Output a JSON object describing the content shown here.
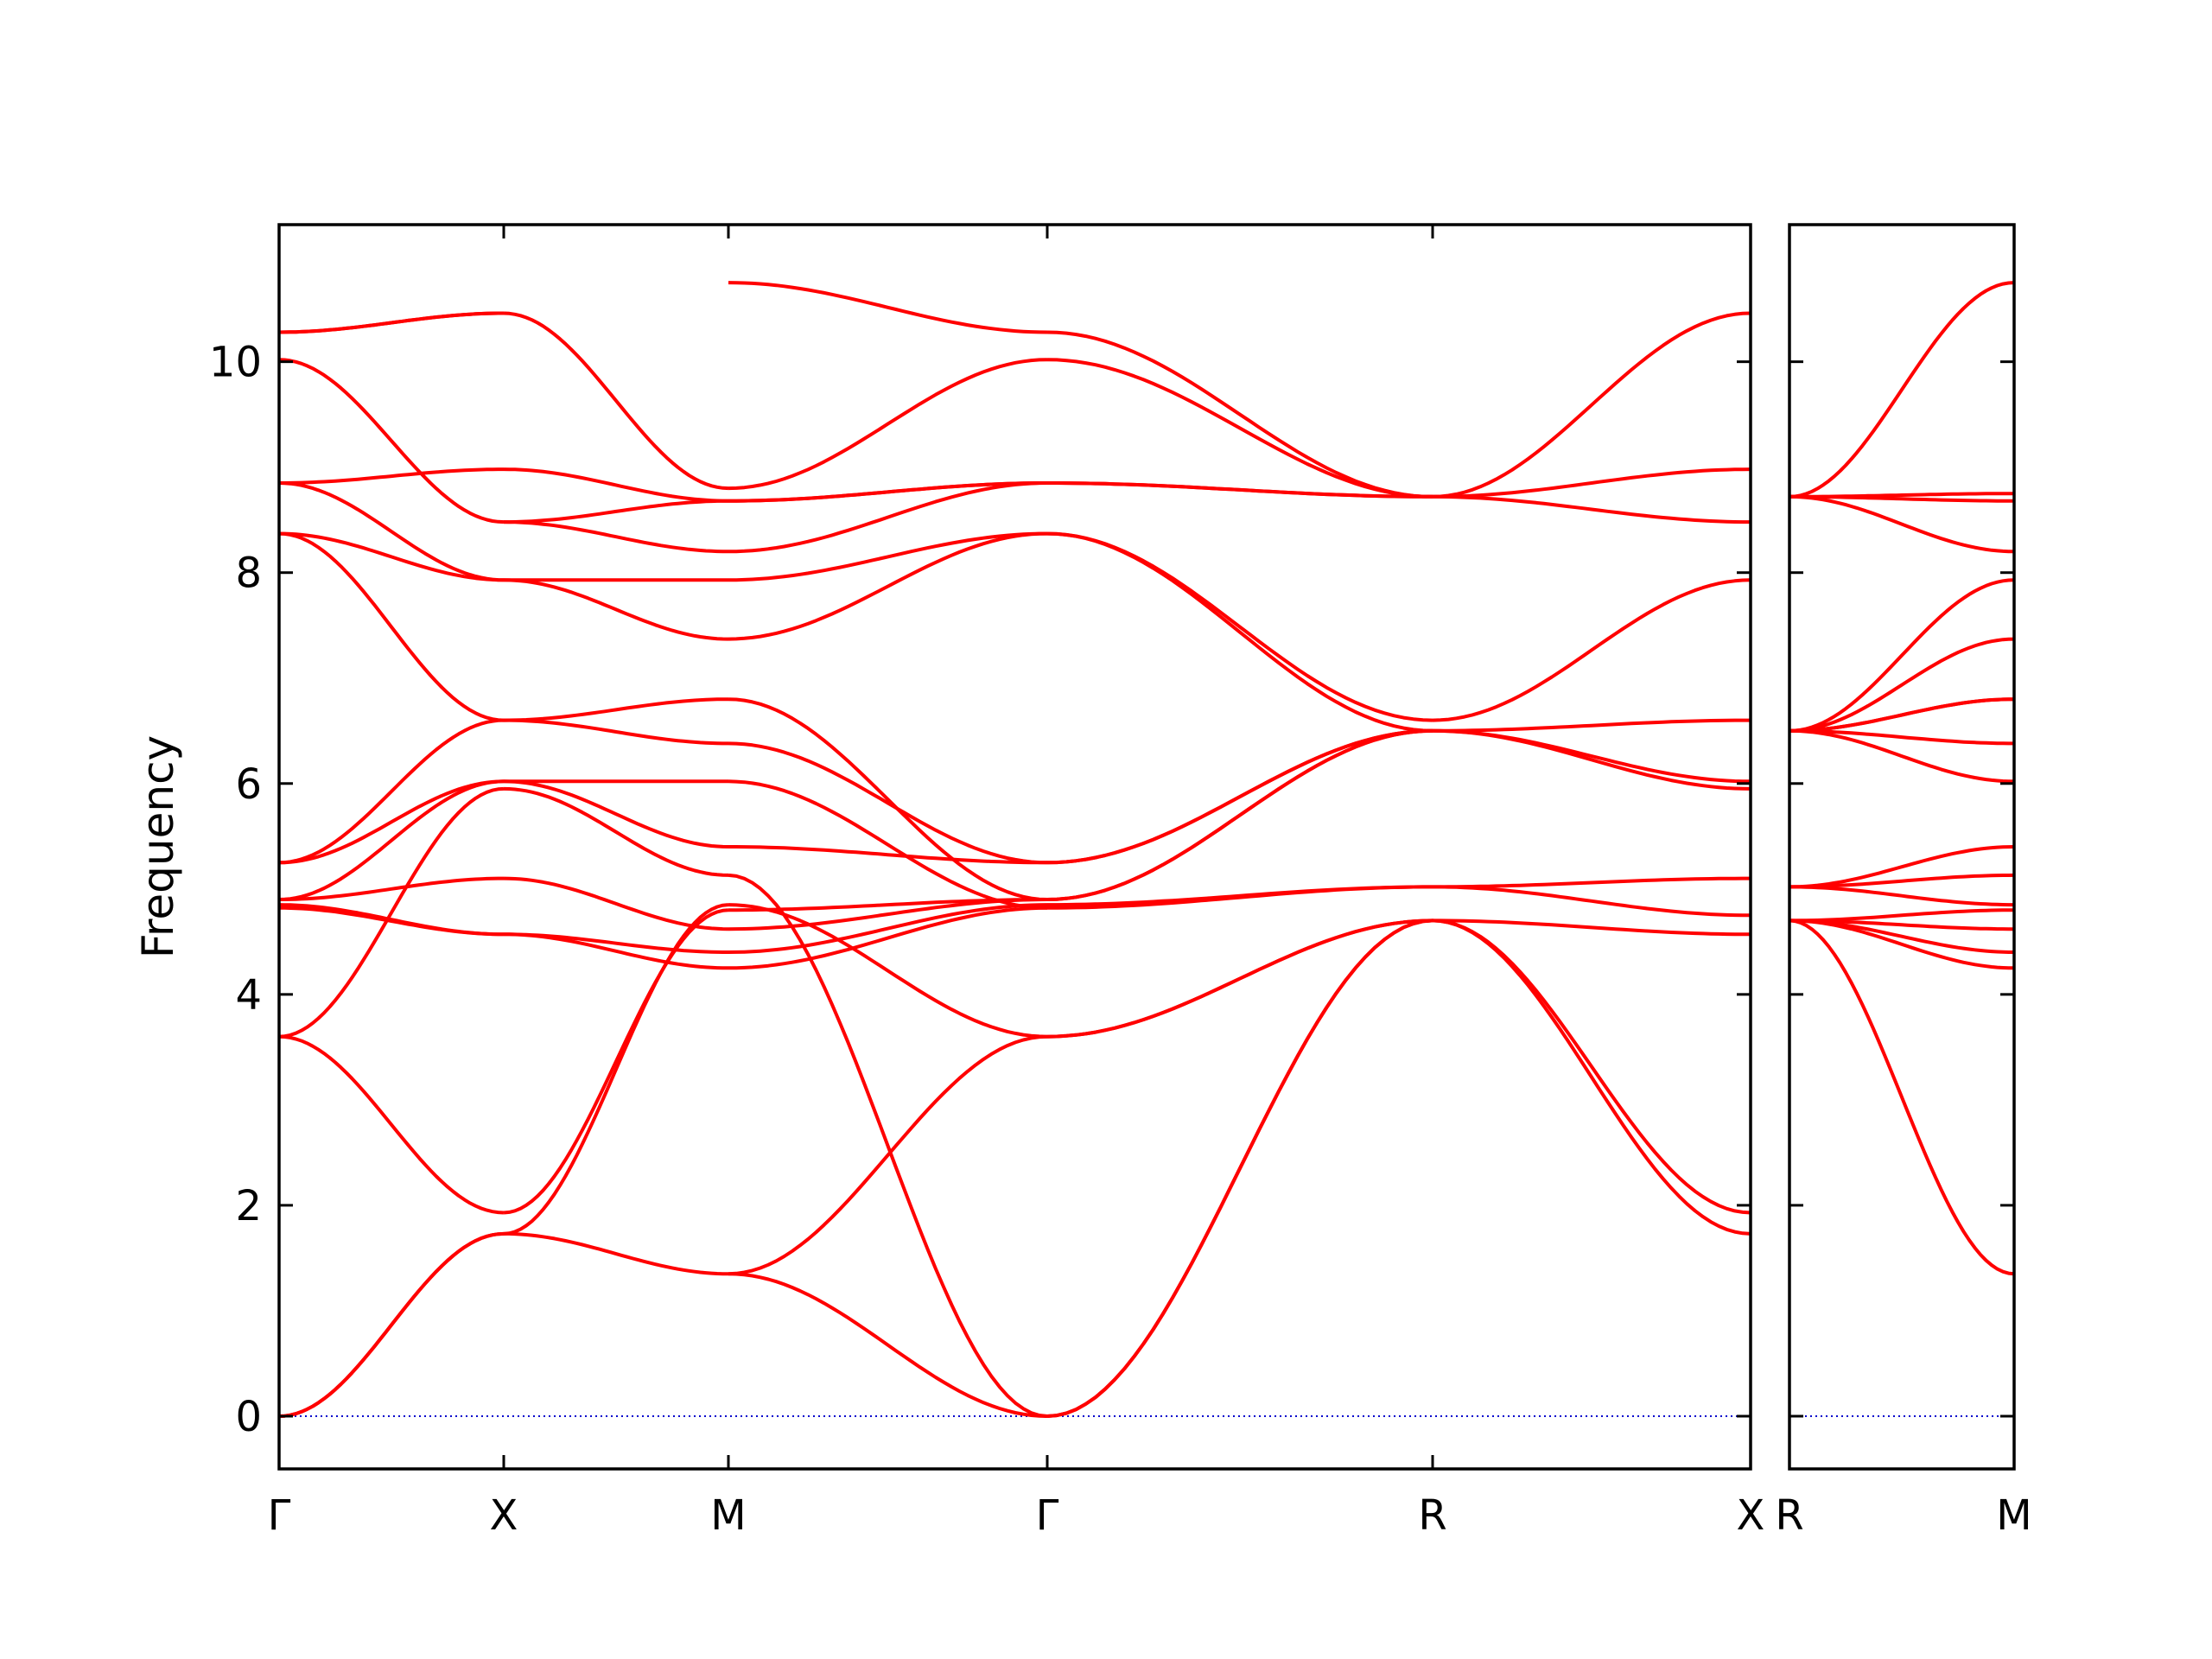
{
  "chart_data": {
    "type": "line",
    "title": "",
    "ylabel": "Frequency",
    "ylim": [
      -0.5,
      11.3
    ],
    "yticks": [
      0,
      2,
      4,
      6,
      8,
      10
    ],
    "ytick_labels": [
      "0",
      "2",
      "4",
      "6",
      "8",
      "10"
    ],
    "grid": false,
    "colors": {
      "bands": "#ff0000",
      "zero_line": "#0000cc"
    },
    "panels": [
      {
        "path_labels": [
          "Γ",
          "X",
          "M",
          "Γ",
          "R",
          "X"
        ],
        "segments": [
          {
            "from": "Γ",
            "to": "X",
            "bands": [
              [
                0,
                1.73
              ],
              [
                0,
                1.73
              ],
              [
                3.6,
                1.93
              ],
              [
                3.6,
                5.95
              ],
              [
                4.82,
                4.57
              ],
              [
                4.85,
                4.57
              ],
              [
                4.9,
                5.1
              ],
              [
                4.9,
                6.02
              ],
              [
                5.25,
                6.02
              ],
              [
                5.25,
                6.6
              ],
              [
                8.37,
                6.6
              ],
              [
                8.37,
                7.93
              ],
              [
                8.85,
                7.93
              ],
              [
                8.85,
                8.98
              ],
              [
                10.02,
                8.48
              ],
              [
                10.28,
                10.46
              ],
              [
                10.28,
                10.46
              ]
            ]
          },
          {
            "from": "X",
            "to": "M",
            "bands": [
              [
                1.73,
                1.35
              ],
              [
                1.73,
                4.85
              ],
              [
                1.93,
                4.8
              ],
              [
                4.57,
                4.25
              ],
              [
                4.57,
                4.4
              ],
              [
                5.1,
                4.62
              ],
              [
                5.95,
                5.13
              ],
              [
                6.02,
                5.4
              ],
              [
                6.02,
                6.02
              ],
              [
                6.6,
                6.38
              ],
              [
                6.6,
                6.8
              ],
              [
                7.93,
                7.37
              ],
              [
                7.93,
                7.93
              ],
              [
                8.48,
                8.2
              ],
              [
                8.48,
                8.68
              ],
              [
                8.98,
                8.68
              ],
              [
                10.46,
                8.8
              ]
            ]
          },
          {
            "from": "M",
            "to": "Γ",
            "bands": [
              [
                1.35,
                0
              ],
              [
                1.35,
                3.6
              ],
              [
                4.25,
                4.82
              ],
              [
                4.4,
                4.85
              ],
              [
                4.62,
                4.9
              ],
              [
                4.8,
                4.9
              ],
              [
                4.85,
                3.6
              ],
              [
                5.13,
                0
              ],
              [
                5.4,
                5.25
              ],
              [
                6.02,
                4.82
              ],
              [
                6.38,
                5.25
              ],
              [
                6.8,
                4.9
              ],
              [
                7.37,
                8.37
              ],
              [
                7.93,
                8.37
              ],
              [
                8.2,
                8.85
              ],
              [
                8.68,
                8.85
              ],
              [
                8.68,
                8.85
              ],
              [
                8.8,
                10.02
              ],
              [
                10.75,
                10.28
              ]
            ]
          },
          {
            "from": "Γ",
            "to": "R",
            "bands": [
              [
                0,
                4.7
              ],
              [
                0,
                4.7
              ],
              [
                3.6,
                4.7
              ],
              [
                3.6,
                4.7
              ],
              [
                4.82,
                5.02
              ],
              [
                4.85,
                5.02
              ],
              [
                4.9,
                6.5
              ],
              [
                4.9,
                6.5
              ],
              [
                5.25,
                6.5
              ],
              [
                5.25,
                6.5
              ],
              [
                8.37,
                6.5
              ],
              [
                8.37,
                6.6
              ],
              [
                8.85,
                8.72
              ],
              [
                8.85,
                8.72
              ],
              [
                10.02,
                8.72
              ],
              [
                10.28,
                8.72
              ]
            ]
          },
          {
            "from": "R",
            "to": "X",
            "bands": [
              [
                4.7,
                1.73
              ],
              [
                4.7,
                1.93
              ],
              [
                4.7,
                4.57
              ],
              [
                5.02,
                4.75
              ],
              [
                5.02,
                5.1
              ],
              [
                6.5,
                5.95
              ],
              [
                6.5,
                6.02
              ],
              [
                6.5,
                6.6
              ],
              [
                6.6,
                7.93
              ],
              [
                8.72,
                8.48
              ],
              [
                8.72,
                8.98
              ],
              [
                8.72,
                10.46
              ]
            ]
          }
        ]
      },
      {
        "path_labels": [
          "R",
          "M"
        ],
        "segments": [
          {
            "from": "R",
            "to": "M",
            "bands": [
              [
                4.7,
                1.35
              ],
              [
                4.7,
                4.25
              ],
              [
                4.7,
                4.4
              ],
              [
                4.7,
                4.62
              ],
              [
                4.7,
                4.8
              ],
              [
                5.02,
                4.85
              ],
              [
                5.02,
                5.13
              ],
              [
                5.02,
                5.4
              ],
              [
                6.5,
                6.02
              ],
              [
                6.5,
                6.38
              ],
              [
                6.5,
                6.8
              ],
              [
                6.5,
                6.8
              ],
              [
                6.5,
                7.37
              ],
              [
                6.5,
                7.93
              ],
              [
                8.72,
                8.2
              ],
              [
                8.72,
                8.68
              ],
              [
                8.72,
                8.75
              ],
              [
                8.72,
                10.75
              ]
            ]
          }
        ]
      }
    ]
  }
}
